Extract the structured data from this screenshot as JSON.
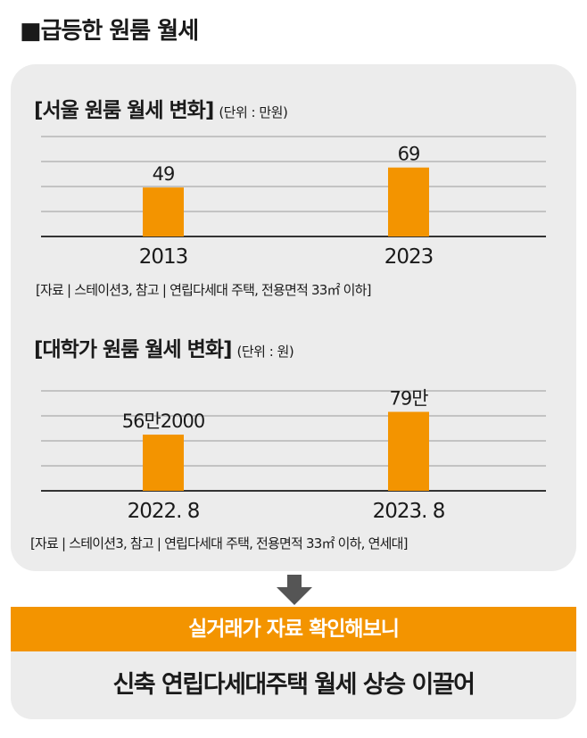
{
  "header": {
    "title": "■급등한 원룸 월세"
  },
  "chart_data": [
    {
      "type": "bar",
      "title": "[서울 원룸 월세 변화]",
      "unit": "(단위 : 만원)",
      "categories": [
        "2013",
        "2023"
      ],
      "values": [
        49,
        69
      ],
      "value_labels": [
        "49",
        "69"
      ],
      "ylim": [
        0,
        100
      ],
      "grid": true,
      "source": "[자료 | 스테이션3, 참고 | 연립다세대 주택, 전용면적 33㎡ 이하]"
    },
    {
      "type": "bar",
      "title": "[대학가 원룸 월세 변화]",
      "unit": "(단위 : 원)",
      "categories": [
        "2022. 8",
        "2023. 8"
      ],
      "values": [
        562000,
        790000
      ],
      "value_labels": [
        "56만2000",
        "79만"
      ],
      "ylim": [
        0,
        1000000
      ],
      "grid": true,
      "source": "[자료 | 스테이션3, 참고 | 연립다세대 주택, 전용면적 33㎡ 이하, 연세대]"
    }
  ],
  "banner": {
    "text": "실거래가 자료 확인해보니"
  },
  "conclusion": {
    "text": "신축 연립다세대주택 월세 상승 이끌어"
  },
  "colors": {
    "bar": "#f39400",
    "panel": "#ececec",
    "arrow": "#555555"
  }
}
